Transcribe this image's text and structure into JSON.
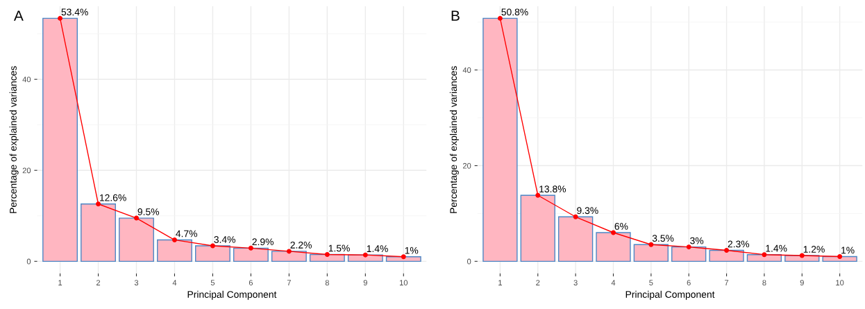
{
  "chart_data": [
    {
      "type": "bar",
      "title": "A",
      "xlabel": "Principal Component",
      "ylabel": "Percentage of explained variances",
      "categories": [
        "1",
        "2",
        "3",
        "4",
        "5",
        "6",
        "7",
        "8",
        "9",
        "10"
      ],
      "series": [
        {
          "color": "#ffb6c1",
          "values": [
            53.4,
            12.6,
            9.5,
            4.7,
            3.4,
            2.9,
            2.2,
            1.5,
            1.4,
            1.0
          ]
        },
        {
          "type": "line",
          "color": "#ff0000",
          "values": [
            53.4,
            12.6,
            9.5,
            4.7,
            3.4,
            2.9,
            2.2,
            1.5,
            1.4,
            1.0
          ],
          "value_labels": [
            "53.4%",
            "12.6%",
            "9.5%",
            "4.7%",
            "3.4%",
            "2.9%",
            "2.2%",
            "1.5%",
            "1.4%",
            "1%"
          ]
        }
      ],
      "ylim": [
        -2.67,
        56.07
      ],
      "yticks": [
        0,
        20,
        40
      ],
      "grid": true,
      "marker": "circle",
      "line_style": "solid"
    },
    {
      "type": "bar",
      "title": "B",
      "xlabel": "Principal Component",
      "ylabel": "Percentage of explained variances",
      "categories": [
        "1",
        "2",
        "3",
        "4",
        "5",
        "6",
        "7",
        "8",
        "9",
        "10"
      ],
      "series": [
        {
          "color": "#ffb6c1",
          "values": [
            50.8,
            13.8,
            9.3,
            6.0,
            3.5,
            3.0,
            2.3,
            1.4,
            1.2,
            1.0
          ]
        },
        {
          "type": "line",
          "color": "#ff0000",
          "values": [
            50.8,
            13.8,
            9.3,
            6.0,
            3.5,
            3.0,
            2.3,
            1.4,
            1.2,
            1.0
          ],
          "value_labels": [
            "50.8%",
            "13.8%",
            "9.3%",
            "6%",
            "3.5%",
            "3%",
            "2.3%",
            "1.4%",
            "1.2%",
            "1%"
          ]
        }
      ],
      "ylim": [
        -2.54,
        53.34
      ],
      "yticks": [
        0,
        20,
        40
      ],
      "grid": true,
      "marker": "circle",
      "line_style": "solid"
    }
  ]
}
